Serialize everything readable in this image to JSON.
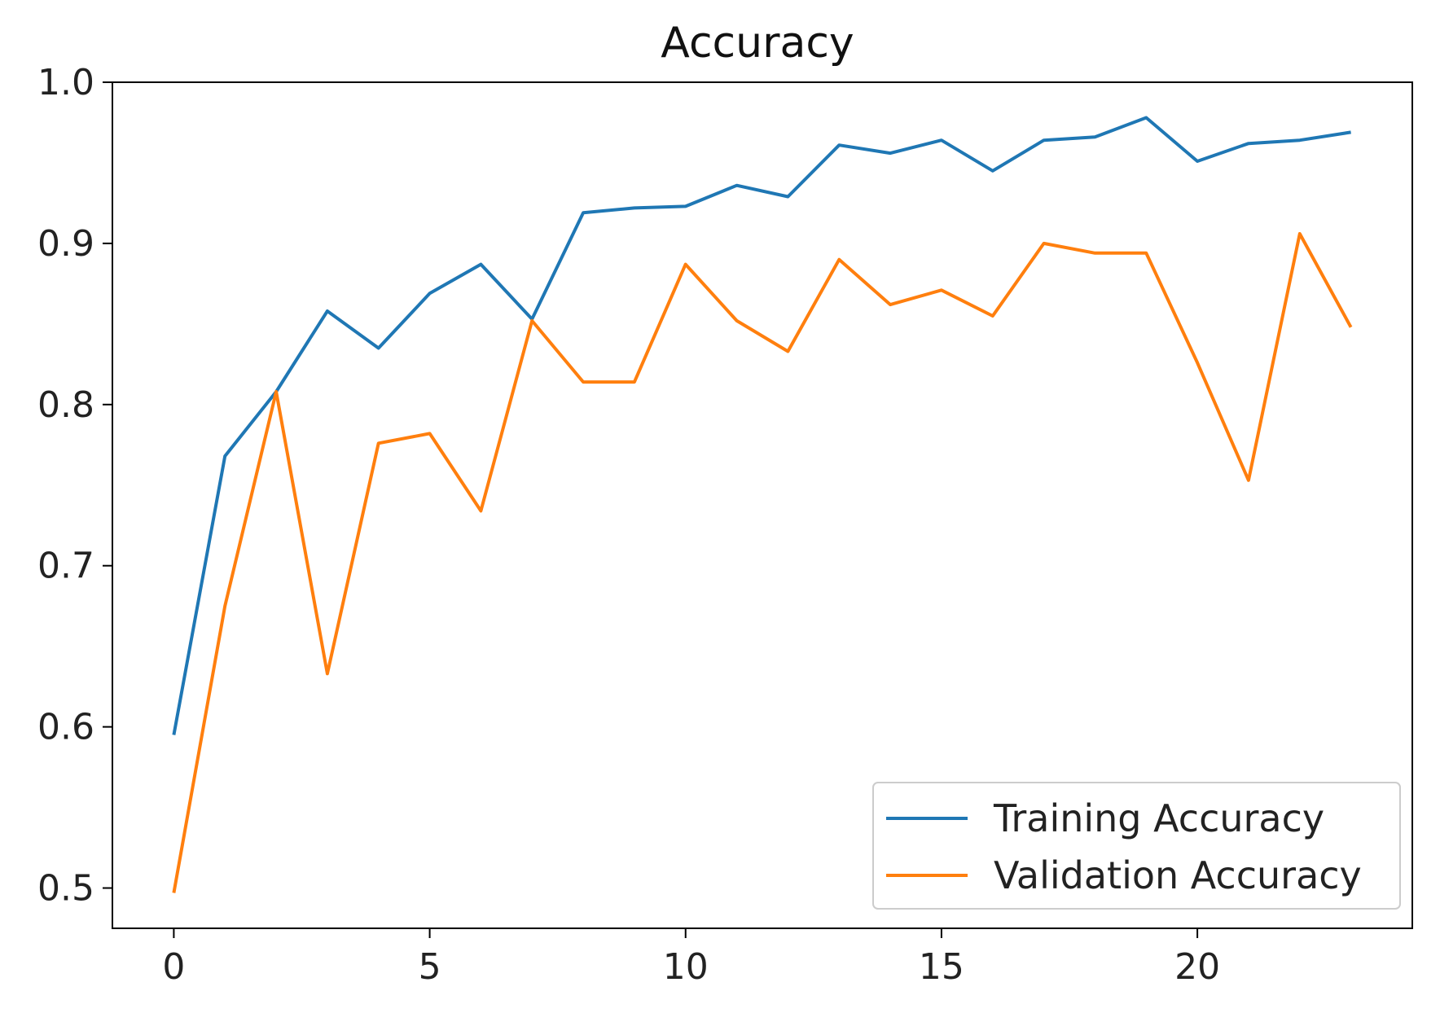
{
  "chart_data": {
    "type": "line",
    "title": "Accuracy",
    "xlabel": "",
    "ylabel": "",
    "xlim": [
      -1.2,
      24.2
    ],
    "ylim": [
      0.475,
      1.0
    ],
    "xticks": [
      0,
      5,
      10,
      15,
      20
    ],
    "xtick_labels": [
      "0",
      "5",
      "10",
      "15",
      "20"
    ],
    "yticks": [
      0.5,
      0.6,
      0.7,
      0.8,
      0.9,
      1.0
    ],
    "ytick_labels": [
      "0.5",
      "0.6",
      "0.7",
      "0.8",
      "0.9",
      "1.0"
    ],
    "grid": false,
    "legend_position": "lower-right",
    "x": [
      0,
      1,
      2,
      3,
      4,
      5,
      6,
      7,
      8,
      9,
      10,
      11,
      12,
      13,
      14,
      15,
      16,
      17,
      18,
      19,
      20,
      21,
      22,
      23
    ],
    "series": [
      {
        "name": "Training Accuracy",
        "color": "#1f77b4",
        "values": [
          0.595,
          0.768,
          0.808,
          0.858,
          0.835,
          0.869,
          0.887,
          0.853,
          0.919,
          0.922,
          0.923,
          0.936,
          0.929,
          0.961,
          0.956,
          0.964,
          0.945,
          0.964,
          0.966,
          0.978,
          0.951,
          0.962,
          0.964,
          0.969
        ]
      },
      {
        "name": "Validation Accuracy",
        "color": "#ff7f0e",
        "values": [
          0.497,
          0.675,
          0.808,
          0.633,
          0.776,
          0.782,
          0.734,
          0.852,
          0.814,
          0.814,
          0.887,
          0.852,
          0.833,
          0.89,
          0.862,
          0.871,
          0.855,
          0.9,
          0.894,
          0.894,
          0.826,
          0.753,
          0.906,
          0.848
        ]
      }
    ]
  }
}
